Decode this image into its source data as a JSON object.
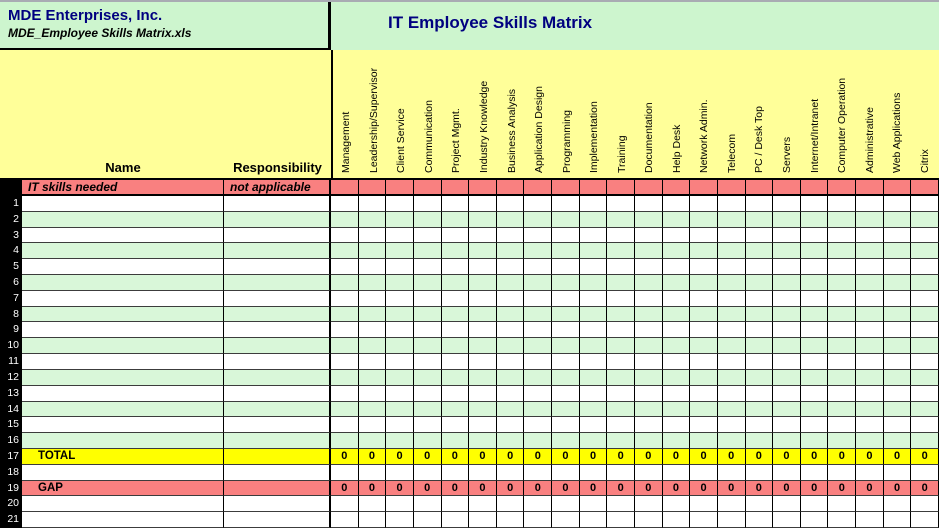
{
  "header": {
    "company_name": "MDE Enterprises, Inc.",
    "file_name": "MDE_Employee Skills Matrix.xls",
    "sheet_title": "IT Employee Skills Matrix"
  },
  "columns": {
    "name_label": "Name",
    "responsibility_label": "Responsibility",
    "skills": [
      "Management",
      "Leadership/Supervisor",
      "Client Service",
      "Communication",
      "Project Mgmt.",
      "Industry Knowledge",
      "Business Analysis",
      "Application Design",
      "Programming",
      "Implementation",
      "Training",
      "Documentation",
      "Help Desk",
      "Network Admin.",
      "Telecom",
      "PC / Desk Top",
      "Servers",
      "Internet/Intranet",
      "Computer Operation",
      "Administrative",
      "Web Applications",
      "Citrix"
    ]
  },
  "header_row": {
    "name": "IT skills needed",
    "responsibility": "not applicable"
  },
  "rows": [
    {
      "num": "1",
      "fill": "white"
    },
    {
      "num": "2",
      "fill": "green"
    },
    {
      "num": "3",
      "fill": "white"
    },
    {
      "num": "4",
      "fill": "green"
    },
    {
      "num": "5",
      "fill": "white"
    },
    {
      "num": "6",
      "fill": "green"
    },
    {
      "num": "7",
      "fill": "white"
    },
    {
      "num": "8",
      "fill": "green"
    },
    {
      "num": "9",
      "fill": "white"
    },
    {
      "num": "10",
      "fill": "green"
    },
    {
      "num": "11",
      "fill": "white"
    },
    {
      "num": "12",
      "fill": "green"
    },
    {
      "num": "13",
      "fill": "white"
    },
    {
      "num": "14",
      "fill": "green"
    },
    {
      "num": "15",
      "fill": "white"
    },
    {
      "num": "16",
      "fill": "green"
    },
    {
      "num": "17",
      "fill": "total",
      "label": "TOTAL",
      "values": [
        "0",
        "0",
        "0",
        "0",
        "0",
        "0",
        "0",
        "0",
        "0",
        "0",
        "0",
        "0",
        "0",
        "0",
        "0",
        "0",
        "0",
        "0",
        "0",
        "0",
        "0",
        "0"
      ]
    },
    {
      "num": "18",
      "fill": "white"
    },
    {
      "num": "19",
      "fill": "gap",
      "label": "GAP",
      "values": [
        "0",
        "0",
        "0",
        "0",
        "0",
        "0",
        "0",
        "0",
        "0",
        "0",
        "0",
        "0",
        "0",
        "0",
        "0",
        "0",
        "0",
        "0",
        "0",
        "0",
        "0",
        "0"
      ]
    },
    {
      "num": "20",
      "fill": "white"
    },
    {
      "num": "21",
      "fill": "white"
    }
  ],
  "colors": {
    "header_green": "#cdf5ce",
    "band_yellow": "#ffff99",
    "red": "#f98080",
    "total_yellow": "#ffff00",
    "row_green": "#d9f7d9",
    "navy": "#000080"
  }
}
